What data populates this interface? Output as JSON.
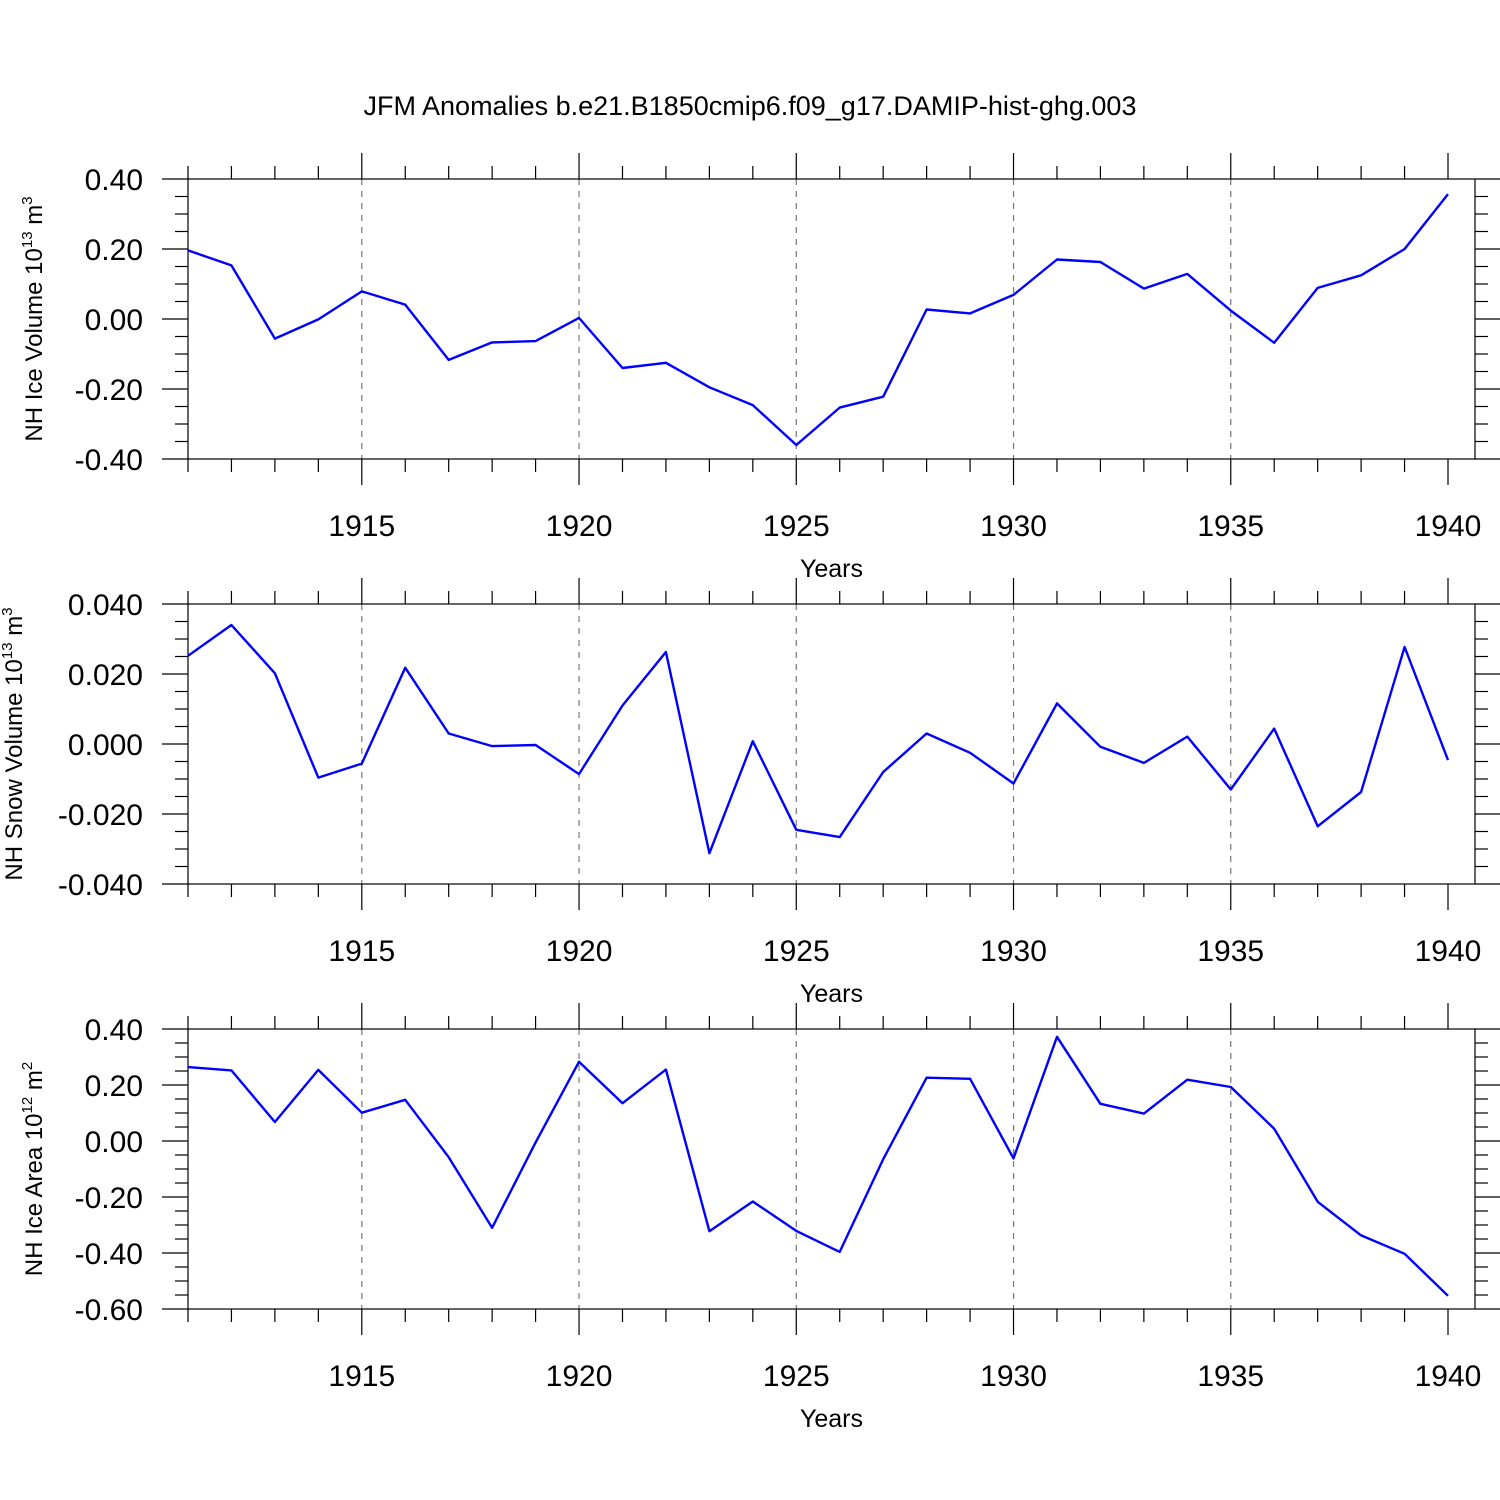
{
  "figure_title": "JFM Anomalies b.e21.B1850cmip6.f09_g17.DAMIP-hist-ghg.003",
  "colors": {
    "line": "#0000ff",
    "axis": "#000000",
    "grid": "#777777"
  },
  "chart_data": [
    {
      "type": "line",
      "xlabel": "Years",
      "ylabel": {
        "text": "NH Ice Volume 10",
        "sup": "13",
        "unit": " m",
        "unit_sup": "3"
      },
      "xlim": [
        1911,
        1940
      ],
      "ylim": [
        -0.4,
        0.4
      ],
      "xticks": [
        1915,
        1920,
        1925,
        1930,
        1935,
        1940
      ],
      "xtick_labels": [
        "1915",
        "1920",
        "1925",
        "1930",
        "1935",
        "1940"
      ],
      "yticks": [
        0.4,
        0.2,
        0.0,
        -0.2,
        -0.4
      ],
      "ytick_labels": [
        "0.40",
        "0.20",
        "0.00",
        "-0.20",
        "-0.40"
      ],
      "grid_x": [
        1915,
        1920,
        1925,
        1930,
        1935
      ],
      "series": [
        {
          "name": "NH Ice Volume",
          "x": [
            1911,
            1912,
            1913,
            1914,
            1915,
            1916,
            1917,
            1918,
            1919,
            1920,
            1921,
            1922,
            1923,
            1924,
            1925,
            1926,
            1927,
            1928,
            1929,
            1930,
            1931,
            1932,
            1933,
            1934,
            1935,
            1936,
            1937,
            1938,
            1939,
            1940
          ],
          "values": [
            0.196,
            0.153,
            -0.056,
            -0.001,
            0.079,
            0.041,
            -0.117,
            -0.067,
            -0.063,
            0.003,
            -0.14,
            -0.125,
            -0.195,
            -0.246,
            -0.36,
            -0.253,
            -0.222,
            0.027,
            0.016,
            0.069,
            0.17,
            0.163,
            0.087,
            0.129,
            0.024,
            -0.068,
            0.089,
            0.125,
            0.2,
            0.357
          ]
        }
      ]
    },
    {
      "type": "line",
      "xlabel": "Years",
      "ylabel": {
        "text": "NH Snow Volume 10",
        "sup": "13",
        "unit": " m",
        "unit_sup": "3"
      },
      "xlim": [
        1911,
        1940
      ],
      "ylim": [
        -0.04,
        0.04
      ],
      "xticks": [
        1915,
        1920,
        1925,
        1930,
        1935,
        1940
      ],
      "xtick_labels": [
        "1915",
        "1920",
        "1925",
        "1930",
        "1935",
        "1940"
      ],
      "yticks": [
        0.04,
        0.02,
        0.0,
        -0.02,
        -0.04
      ],
      "ytick_labels": [
        "0.040",
        "0.020",
        "0.000",
        "-0.020",
        "-0.040"
      ],
      "grid_x": [
        1915,
        1920,
        1925,
        1930,
        1935
      ],
      "series": [
        {
          "name": "NH Snow Volume",
          "x": [
            1911,
            1912,
            1913,
            1914,
            1915,
            1916,
            1917,
            1918,
            1919,
            1920,
            1921,
            1922,
            1923,
            1924,
            1925,
            1926,
            1927,
            1928,
            1929,
            1930,
            1931,
            1932,
            1933,
            1934,
            1935,
            1936,
            1937,
            1938,
            1939,
            1940
          ],
          "values": [
            0.0252,
            0.034,
            0.0202,
            -0.0096,
            -0.0056,
            0.0218,
            0.003,
            -0.0006,
            -0.0003,
            -0.0086,
            0.011,
            0.0263,
            -0.0312,
            0.0008,
            -0.0245,
            -0.0266,
            -0.008,
            0.003,
            -0.0025,
            -0.0113,
            0.0116,
            -0.0008,
            -0.0054,
            0.0021,
            -0.013,
            0.0044,
            -0.0235,
            -0.0137,
            0.0277,
            -0.0046
          ]
        }
      ]
    },
    {
      "type": "line",
      "xlabel": "Years",
      "ylabel": {
        "text": "NH Ice Area 10",
        "sup": "12",
        "unit": " m",
        "unit_sup": "2"
      },
      "xlim": [
        1911,
        1940
      ],
      "ylim": [
        -0.6,
        0.4
      ],
      "xticks": [
        1915,
        1920,
        1925,
        1930,
        1935,
        1940
      ],
      "xtick_labels": [
        "1915",
        "1920",
        "1925",
        "1930",
        "1935",
        "1940"
      ],
      "yticks": [
        0.4,
        0.2,
        0.0,
        -0.2,
        -0.4,
        -0.6
      ],
      "ytick_labels": [
        "0.40",
        "0.20",
        "0.00",
        "-0.20",
        "-0.40",
        "-0.60"
      ],
      "grid_x": [
        1915,
        1920,
        1925,
        1930,
        1935
      ],
      "series": [
        {
          "name": "NH Ice Area",
          "x": [
            1911,
            1912,
            1913,
            1914,
            1915,
            1916,
            1917,
            1918,
            1919,
            1920,
            1921,
            1922,
            1923,
            1924,
            1925,
            1926,
            1927,
            1928,
            1929,
            1930,
            1931,
            1932,
            1933,
            1934,
            1935,
            1936,
            1937,
            1938,
            1939,
            1940
          ],
          "values": [
            0.264,
            0.252,
            0.068,
            0.254,
            0.101,
            0.147,
            -0.058,
            -0.31,
            -0.005,
            0.283,
            0.135,
            0.255,
            -0.322,
            -0.216,
            -0.321,
            -0.396,
            -0.065,
            0.226,
            0.222,
            -0.062,
            0.372,
            0.133,
            0.098,
            0.219,
            0.193,
            0.044,
            -0.217,
            -0.337,
            -0.403,
            -0.553
          ]
        }
      ]
    }
  ]
}
